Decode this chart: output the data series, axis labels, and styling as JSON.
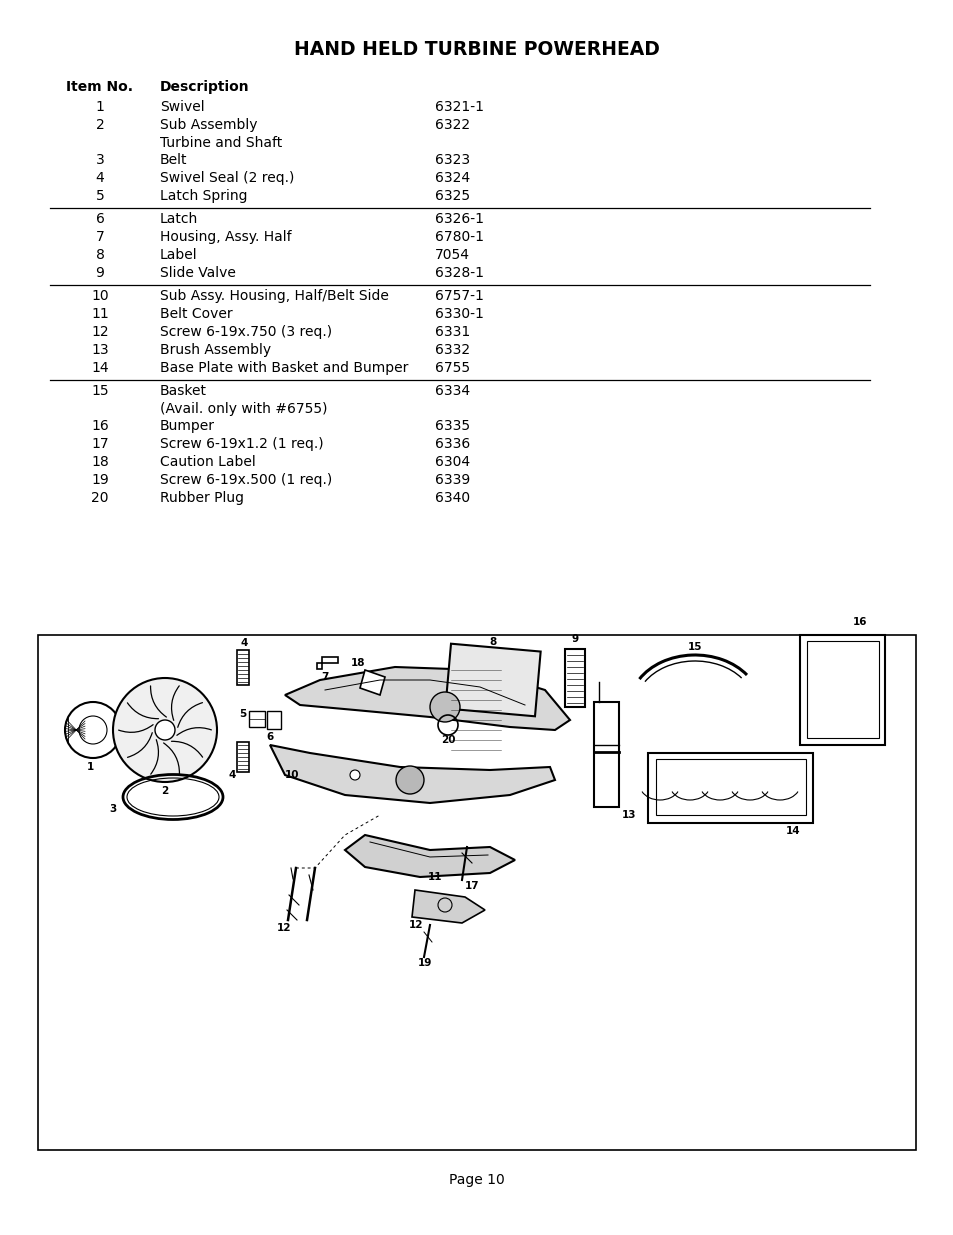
{
  "title": "HAND HELD TURBINE POWERHEAD",
  "rows": [
    {
      "num": "1",
      "desc": "Swivel",
      "desc2": "",
      "part": "6321-1"
    },
    {
      "num": "2",
      "desc": "Sub Assembly",
      "desc2": "Turbine and Shaft",
      "part": "6322"
    },
    {
      "num": "3",
      "desc": "Belt",
      "desc2": "",
      "part": "6323"
    },
    {
      "num": "4",
      "desc": "Swivel Seal (2 req.)",
      "desc2": "",
      "part": "6324"
    },
    {
      "num": "5",
      "desc": "Latch Spring",
      "desc2": "",
      "part": "6325"
    },
    {
      "num": "6",
      "desc": "Latch",
      "desc2": "",
      "part": "6326-1"
    },
    {
      "num": "7",
      "desc": "Housing, Assy. Half",
      "desc2": "",
      "part": "6780-1"
    },
    {
      "num": "8",
      "desc": "Label",
      "desc2": "",
      "part": "7054"
    },
    {
      "num": "9",
      "desc": "Slide Valve",
      "desc2": "",
      "part": "6328-1"
    },
    {
      "num": "10",
      "desc": "Sub Assy. Housing, Half/Belt Side",
      "desc2": "",
      "part": "6757-1"
    },
    {
      "num": "11",
      "desc": "Belt Cover",
      "desc2": "",
      "part": "6330-1"
    },
    {
      "num": "12",
      "desc": "Screw 6-19x.750 (3 req.)",
      "desc2": "",
      "part": "6331"
    },
    {
      "num": "13",
      "desc": "Brush Assembly",
      "desc2": "",
      "part": "6332"
    },
    {
      "num": "14",
      "desc": "Base Plate with Basket and Bumper",
      "desc2": "",
      "part": "6755"
    },
    {
      "num": "15",
      "desc": "Basket",
      "desc2": "(Avail. only with #6755)",
      "part": "6334"
    },
    {
      "num": "16",
      "desc": "Bumper",
      "desc2": "",
      "part": "6335"
    },
    {
      "num": "17",
      "desc": "Screw 6-19x1.2 (1 req.)",
      "desc2": "",
      "part": "6336"
    },
    {
      "num": "18",
      "desc": "Caution Label",
      "desc2": "",
      "part": "6304"
    },
    {
      "num": "19",
      "desc": "Screw 6-19x.500 (1 req.)",
      "desc2": "",
      "part": "6339"
    },
    {
      "num": "20",
      "desc": "Rubber Plug",
      "desc2": "",
      "part": "6340"
    }
  ],
  "sep_after": [
    4,
    8,
    13
  ],
  "page_label": "Page 10",
  "bg_color": "#ffffff",
  "text_color": "#000000"
}
